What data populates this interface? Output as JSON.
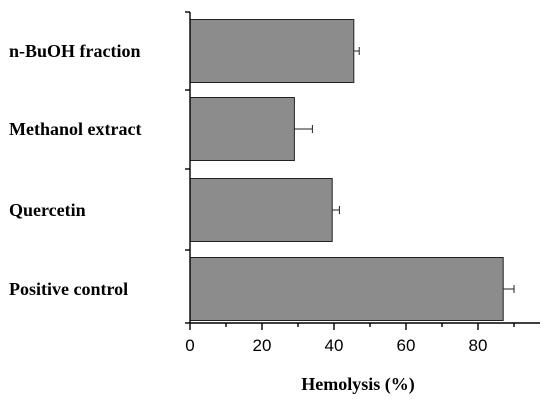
{
  "chart_data": {
    "type": "bar",
    "orientation": "horizontal",
    "categories": [
      "n-BuOH fraction",
      "Methanol extract",
      "Quercetin",
      "Positive control"
    ],
    "values": [
      45.5,
      29,
      39.5,
      87
    ],
    "errors": [
      1.5,
      5,
      2,
      3
    ],
    "xlabel": "Hemolysis (%)",
    "ylabel": "",
    "title": "",
    "xlim": [
      0,
      96
    ],
    "xticks": [
      0,
      20,
      40,
      60,
      80
    ],
    "tick_labels": [
      "0",
      "20",
      "40",
      "60",
      "80"
    ],
    "bar_color": "#8c8c8c",
    "grid": false,
    "legend": "none"
  }
}
